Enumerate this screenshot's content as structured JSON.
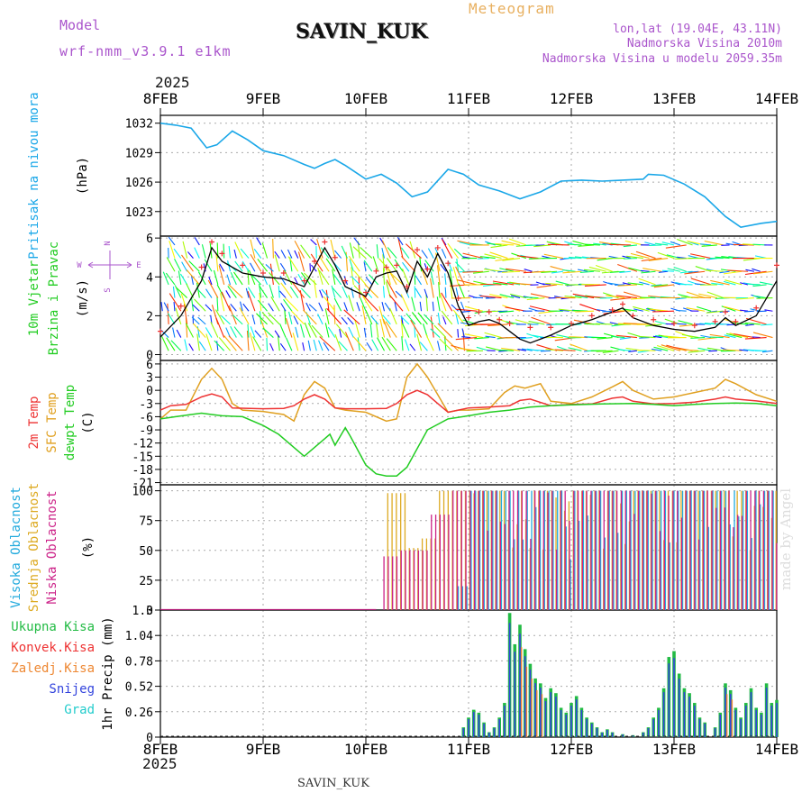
{
  "header": {
    "model_label": "Model",
    "model_value": "wrf-nmm_v3.9.1 e1km",
    "station": "SAVIN_KUK",
    "product": "Meteogram",
    "coords": "lon,lat (19.04E, 43.11N)",
    "elevation": "Nadmorska Visina 2010m",
    "model_elevation": "Nadmorska Visina u modelu 2059.35m",
    "year_top": "2025",
    "year_bottom": "2025",
    "footer_station": "SAVIN_KUK",
    "watermark": "made by Angel"
  },
  "colors": {
    "pressure": "#1aa7e8",
    "temp2m": "#ee3333",
    "sfc": "#e0a020",
    "dewpt": "#22cc22",
    "total_precip": "#22bb44",
    "conv_precip": "#ee3333",
    "frozen": "#ee8833",
    "snow": "#3344dd",
    "hail": "#22cccc",
    "high_cloud": "#22aadd",
    "mid_cloud": "#ddaa22",
    "low_cloud": "#cc2288",
    "purple": "#aa55cc"
  },
  "chart_data": {
    "type": "line",
    "x_tick_labels": [
      "8FEB",
      "9FEB",
      "10FEB",
      "11FEB",
      "12FEB",
      "13FEB",
      "14FEB"
    ],
    "x_range_days": [
      8,
      14
    ],
    "panels": [
      {
        "id": "pressure",
        "ylabel": "Pritisak na nivou mora",
        "unit": "(hPa)",
        "yticks": [
          "1023",
          "1026",
          "1029",
          "1032"
        ],
        "ylim": [
          1020.5,
          1032.8
        ],
        "series": [
          {
            "name": "Pritisak na nivou mora",
            "x": [
              8.0,
              8.15,
              8.3,
              8.45,
              8.55,
              8.7,
              8.85,
              9.0,
              9.2,
              9.4,
              9.5,
              9.6,
              9.7,
              9.8,
              9.9,
              10.0,
              10.15,
              10.3,
              10.45,
              10.6,
              10.8,
              10.95,
              11.1,
              11.3,
              11.5,
              11.7,
              11.9,
              12.1,
              12.3,
              12.5,
              12.7,
              12.75,
              12.9,
              13.1,
              13.3,
              13.5,
              13.65,
              13.85,
              14.0
            ],
            "values": [
              1032.0,
              1031.8,
              1031.5,
              1029.5,
              1029.8,
              1031.2,
              1030.3,
              1029.2,
              1028.7,
              1027.8,
              1027.4,
              1027.9,
              1028.3,
              1027.7,
              1027.0,
              1026.3,
              1026.8,
              1025.9,
              1024.5,
              1025.0,
              1027.3,
              1026.8,
              1025.7,
              1025.1,
              1024.3,
              1025.0,
              1026.1,
              1026.2,
              1026.1,
              1026.2,
              1026.3,
              1026.8,
              1026.7,
              1025.8,
              1024.5,
              1022.5,
              1021.4,
              1021.8,
              1022.0
            ]
          }
        ]
      },
      {
        "id": "wind",
        "ylabel": "10m Vjetar",
        "ylabel2": "Brzina i Pravac",
        "unit": "(m/s)",
        "yticks": [
          "0",
          "2",
          "4",
          "6"
        ],
        "ylim": [
          -0.3,
          6.1
        ],
        "compass": {
          "n": "N",
          "s": "S",
          "e": "E",
          "w": "W"
        },
        "series": [
          {
            "name": "wind speed",
            "x": [
              8.0,
              8.2,
              8.4,
              8.5,
              8.6,
              8.8,
              9.0,
              9.2,
              9.4,
              9.5,
              9.6,
              9.7,
              9.8,
              10.0,
              10.1,
              10.2,
              10.3,
              10.4,
              10.5,
              10.6,
              10.7,
              10.8,
              10.9,
              11.0,
              11.1,
              11.2,
              11.3,
              11.4,
              11.5,
              11.6,
              11.8,
              12.0,
              12.2,
              12.4,
              12.5,
              12.6,
              12.8,
              13.0,
              13.2,
              13.4,
              13.5,
              13.6,
              13.8,
              14.0
            ],
            "values": [
              0.9,
              2.0,
              3.8,
              5.5,
              4.8,
              4.2,
              4.0,
              3.9,
              3.5,
              4.5,
              5.5,
              4.6,
              3.5,
              3.0,
              4.0,
              4.2,
              4.3,
              3.2,
              4.8,
              4.0,
              5.2,
              4.2,
              2.5,
              1.5,
              1.7,
              1.8,
              1.6,
              1.2,
              0.8,
              0.6,
              1.0,
              1.5,
              1.8,
              2.2,
              2.4,
              1.9,
              1.5,
              1.3,
              1.2,
              1.4,
              1.9,
              1.5,
              2.0,
              3.8
            ]
          },
          {
            "name": "gust",
            "x": [
              8.0,
              8.2,
              8.4,
              8.5,
              8.6,
              8.8,
              9.0,
              9.2,
              9.4,
              9.5,
              9.6,
              9.7,
              9.8,
              10.0,
              10.1,
              10.2,
              10.3,
              10.4,
              10.5,
              10.6,
              10.7,
              10.8,
              10.9,
              11.0,
              11.1,
              11.2,
              11.3,
              11.4,
              11.6,
              11.8,
              12.0,
              12.2,
              12.4,
              12.5,
              12.6,
              12.8,
              13.0,
              13.2,
              13.4,
              13.5,
              13.6,
              13.8,
              14.0
            ],
            "values": [
              1.2,
              2.5,
              4.5,
              5.8,
              5.2,
              4.6,
              4.2,
              4.2,
              3.8,
              4.8,
              5.8,
              5.0,
              3.8,
              3.2,
              4.3,
              4.5,
              4.6,
              3.5,
              5.4,
              4.4,
              5.5,
              4.7,
              2.9,
              1.9,
              2.2,
              2.2,
              1.8,
              1.6,
              1.4,
              1.4,
              1.6,
              2.0,
              2.3,
              2.6,
              2.0,
              1.8,
              1.6,
              1.5,
              1.7,
              2.2,
              1.7,
              2.4,
              4.6
            ]
          }
        ]
      },
      {
        "id": "temperature",
        "ylabel": "2m Temp",
        "ylabel2": "SFC Temp",
        "ylabel3": "dewpt Temp",
        "unit": "(C)",
        "yticks": [
          "-21",
          "-18",
          "-15",
          "-12",
          "-9",
          "-6",
          "-3",
          "0",
          "3",
          "6"
        ],
        "ylim": [
          -21.5,
          6.8
        ],
        "series": [
          {
            "name": "2m Temp",
            "x": [
              8.0,
              8.1,
              8.25,
              8.4,
              8.5,
              8.6,
              8.7,
              9.0,
              9.2,
              9.3,
              9.4,
              9.5,
              9.6,
              9.7,
              9.8,
              10.0,
              10.2,
              10.3,
              10.4,
              10.5,
              10.6,
              10.7,
              10.8,
              10.9,
              11.0,
              11.2,
              11.4,
              11.5,
              11.6,
              11.8,
              12.0,
              12.2,
              12.4,
              12.5,
              12.6,
              12.8,
              13.0,
              13.2,
              13.4,
              13.5,
              13.6,
              13.8,
              14.0
            ],
            "values": [
              -4.5,
              -3.5,
              -3.2,
              -1.5,
              -0.8,
              -1.5,
              -4.0,
              -4.2,
              -4.1,
              -3.5,
              -2.0,
              -1.0,
              -2.0,
              -4.0,
              -4.2,
              -4.2,
              -4.1,
              -3.0,
              -1.0,
              0.0,
              -1.0,
              -3.0,
              -5.0,
              -4.5,
              -4.0,
              -3.8,
              -3.5,
              -2.3,
              -2.0,
              -3.5,
              -3.2,
              -3.1,
              -1.8,
              -1.5,
              -2.5,
              -3.1,
              -3.0,
              -2.7,
              -2.0,
              -1.5,
              -2.0,
              -2.4,
              -3.0
            ]
          },
          {
            "name": "SFC Temp",
            "x": [
              8.0,
              8.1,
              8.25,
              8.4,
              8.5,
              8.6,
              8.7,
              8.8,
              9.0,
              9.2,
              9.3,
              9.4,
              9.5,
              9.6,
              9.7,
              9.8,
              10.0,
              10.2,
              10.3,
              10.4,
              10.5,
              10.6,
              10.7,
              10.8,
              10.9,
              11.0,
              11.2,
              11.35,
              11.45,
              11.55,
              11.7,
              11.8,
              12.0,
              12.2,
              12.4,
              12.5,
              12.6,
              12.8,
              13.0,
              13.2,
              13.4,
              13.5,
              13.6,
              13.8,
              14.0
            ],
            "values": [
              -6.5,
              -4.5,
              -4.5,
              2.5,
              5.0,
              2.5,
              -3.0,
              -4.5,
              -4.8,
              -5.5,
              -7.0,
              -1.0,
              2.0,
              0.5,
              -4.0,
              -4.5,
              -5.0,
              -7.0,
              -6.5,
              3.0,
              6.0,
              3.0,
              -1.0,
              -5.0,
              -4.5,
              -4.5,
              -4.2,
              -0.5,
              1.0,
              0.5,
              1.5,
              -2.5,
              -3.0,
              -1.5,
              0.8,
              2.0,
              0.0,
              -2.0,
              -1.5,
              -0.5,
              0.5,
              2.5,
              1.5,
              -1.0,
              -2.5
            ]
          },
          {
            "name": "dewpt Temp",
            "x": [
              8.0,
              8.15,
              8.3,
              8.4,
              8.5,
              8.6,
              8.8,
              9.0,
              9.15,
              9.3,
              9.4,
              9.5,
              9.6,
              9.65,
              9.7,
              9.8,
              9.85,
              10.0,
              10.1,
              10.2,
              10.3,
              10.4,
              10.6,
              10.8,
              11.0,
              11.2,
              11.4,
              11.6,
              11.8,
              12.0,
              12.3,
              12.6,
              12.8,
              13.0,
              13.2,
              13.4,
              13.6,
              13.8,
              14.0
            ],
            "values": [
              -6.5,
              -6.0,
              -5.5,
              -5.2,
              -5.5,
              -5.8,
              -6.0,
              -8.0,
              -10.0,
              -13.0,
              -15.0,
              -13.0,
              -11.0,
              -10.0,
              -12.5,
              -8.5,
              -10.5,
              -17.0,
              -19.0,
              -19.5,
              -19.5,
              -17.5,
              -9.0,
              -6.5,
              -5.8,
              -5.0,
              -4.5,
              -3.8,
              -3.5,
              -3.3,
              -3.1,
              -3.0,
              -3.2,
              -3.5,
              -3.2,
              -3.0,
              -2.9,
              -3.0,
              -3.5
            ]
          }
        ]
      },
      {
        "id": "cloud",
        "ylabel": "Visoka Oblacnost",
        "ylabel2": "Srednja Oblacnost",
        "ylabel3": "Niska Oblacnost",
        "unit": "(%)",
        "yticks": [
          "0",
          "25",
          "50",
          "75",
          "100"
        ],
        "ylim": [
          0,
          105
        ],
        "series": [
          {
            "name": "Visoka Oblacnost",
            "x": [
              10.9,
              11.0,
              11.7,
              12.2,
              12.5,
              12.9,
              13.0,
              13.3,
              13.6,
              13.95
            ],
            "values": [
              20,
              100,
              80,
              100,
              100,
              70,
              100,
              100,
              90,
              100
            ]
          },
          {
            "name": "Srednja Oblacnost",
            "x": [
              10.2,
              10.4,
              10.5,
              10.7,
              11.0,
              11.2,
              11.4,
              11.6,
              11.8,
              12.0,
              12.2,
              12.4,
              12.6,
              12.8,
              13.0,
              13.2,
              13.4,
              13.6,
              13.8,
              13.95
            ],
            "values": [
              98,
              52,
              60,
              100,
              100,
              100,
              100,
              100,
              100,
              100,
              100,
              100,
              100,
              100,
              100,
              100,
              100,
              100,
              100,
              100
            ]
          },
          {
            "name": "Niska Oblacnost",
            "x": [
              10.15,
              10.3,
              10.6,
              10.8,
              11.1,
              11.3,
              11.5,
              11.7,
              11.9,
              12.1,
              12.3,
              12.5,
              12.7,
              12.9,
              13.1,
              13.3,
              13.5,
              13.7,
              13.9
            ],
            "values": [
              45,
              50,
              80,
              100,
              100,
              100,
              100,
              100,
              100,
              100,
              100,
              100,
              100,
              100,
              100,
              100,
              100,
              100,
              100
            ]
          }
        ]
      },
      {
        "id": "precip",
        "ylabel": "1hr Precip",
        "unit": "(mm)",
        "yticks": [
          "0",
          "0.26",
          "0.52",
          "0.78",
          "1.04",
          "1.3"
        ],
        "ylim": [
          0,
          1.3
        ],
        "legend": [
          "Ukupna Kisa",
          "Konvek.Kisa",
          "Zaledj.Kisa",
          "Snijeg",
          "Grad"
        ],
        "series": [
          {
            "name": "Ukupna Kisa",
            "x": [
              10.95,
              11.0,
              11.05,
              11.1,
              11.15,
              11.2,
              11.25,
              11.3,
              11.35,
              11.4,
              11.45,
              11.5,
              11.55,
              11.6,
              11.65,
              11.7,
              11.75,
              11.8,
              11.85,
              11.9,
              11.95,
              12.0,
              12.05,
              12.1,
              12.15,
              12.2,
              12.25,
              12.3,
              12.35,
              12.4,
              12.5,
              12.6,
              12.7,
              12.75,
              12.8,
              12.85,
              12.9,
              12.95,
              13.0,
              13.05,
              13.1,
              13.15,
              13.2,
              13.25,
              13.3,
              13.4,
              13.45,
              13.5,
              13.55,
              13.6,
              13.65,
              13.7,
              13.75,
              13.8,
              13.85,
              13.9,
              13.95,
              14.0
            ],
            "values": [
              0.1,
              0.2,
              0.28,
              0.25,
              0.15,
              0.05,
              0.1,
              0.2,
              0.35,
              1.27,
              0.95,
              1.15,
              0.9,
              0.75,
              0.6,
              0.55,
              0.4,
              0.5,
              0.45,
              0.3,
              0.25,
              0.35,
              0.42,
              0.3,
              0.2,
              0.15,
              0.1,
              0.05,
              0.08,
              0.05,
              0.03,
              0.02,
              0.05,
              0.1,
              0.2,
              0.3,
              0.5,
              0.82,
              0.88,
              0.65,
              0.5,
              0.45,
              0.35,
              0.2,
              0.15,
              0.1,
              0.25,
              0.55,
              0.48,
              0.3,
              0.2,
              0.35,
              0.5,
              0.3,
              0.25,
              0.55,
              0.35,
              0.38
            ]
          }
        ]
      }
    ]
  }
}
